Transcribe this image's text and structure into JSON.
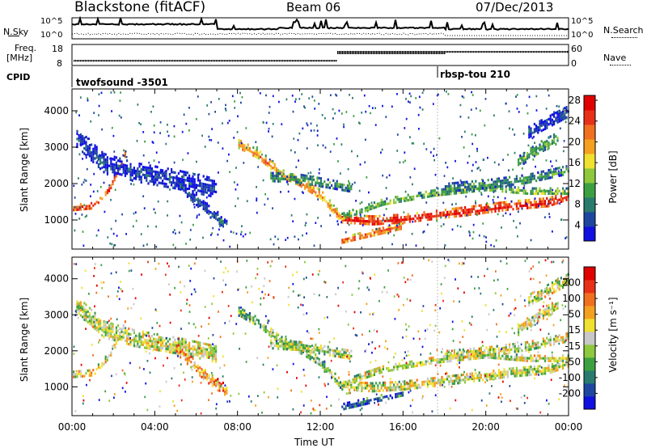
{
  "header": {
    "station": "Blackstone (fitACF)",
    "beam": "Beam 06",
    "date": "07/Dec/2013"
  },
  "noise_panel": {
    "left_label": "N.Sky",
    "right_label": "N.Search",
    "left_ticks": [
      "10^5",
      "10^0"
    ],
    "right_ticks": [
      "10^5",
      "10^0"
    ]
  },
  "freq_panel": {
    "left_label_top": "Freq.",
    "left_label_bottom": "[MHz]",
    "left_ticks": [
      "18",
      "8"
    ],
    "right_label": "Nave",
    "right_ticks": [
      "60",
      "0"
    ]
  },
  "cpid": {
    "label": "CPID",
    "modes": [
      {
        "name": "twofsound -3501",
        "start_hour": 0
      },
      {
        "name": "rbsp-tou 210",
        "start_hour": 18
      }
    ]
  },
  "chart_data": [
    {
      "type": "heatmap",
      "name": "power",
      "ylabel": "Slant Range [km]",
      "yticks": [
        1000,
        2000,
        3000,
        4000
      ],
      "ylim": [
        200,
        4600
      ],
      "xlim": [
        0,
        24
      ],
      "colorbar": {
        "label": "Power [dB]",
        "ticks": [
          "4",
          "8",
          "12",
          "16",
          "20",
          "24",
          "28"
        ],
        "colors": [
          "#1010e0",
          "#1e46a0",
          "#2a7a6e",
          "#3ca040",
          "#8ec83c",
          "#f0e030",
          "#f5a020",
          "#f07020",
          "#e83018",
          "#e00000"
        ]
      },
      "bands": [
        {
          "x": [
            0.0,
            1.0,
            1.8,
            2.6
          ],
          "y": [
            1350,
            1400,
            1900,
            2900
          ],
          "width": 200,
          "level": 0.85
        },
        {
          "x": [
            0.2,
            1.5,
            3.0,
            5.0,
            7.0
          ],
          "y": [
            3300,
            2600,
            2350,
            2150,
            1900
          ],
          "width": 500,
          "level": 0.15
        },
        {
          "x": [
            5.0,
            6.5,
            7.5
          ],
          "y": [
            2100,
            1300,
            900
          ],
          "width": 300,
          "level": 0.2
        },
        {
          "x": [
            8.0,
            9.0,
            10.0,
            11.0,
            12.0,
            13.0
          ],
          "y": [
            3100,
            2800,
            2300,
            2050,
            1700,
            1050
          ],
          "width": 280,
          "level": 0.7
        },
        {
          "x": [
            9.5,
            11.0,
            12.5,
            13.5
          ],
          "y": [
            2200,
            2150,
            2000,
            1900
          ],
          "width": 250,
          "level": 0.35
        },
        {
          "x": [
            13.0,
            14.5,
            16.0,
            17.5,
            19.0,
            21.0,
            23.0,
            24.0
          ],
          "y": [
            1050,
            1000,
            1050,
            1150,
            1250,
            1400,
            1500,
            1700
          ],
          "width": 260,
          "level": 0.92
        },
        {
          "x": [
            13.0,
            15.0,
            17.5,
            20.0,
            22.0,
            24.0
          ],
          "y": [
            1100,
            1500,
            1750,
            1900,
            1800,
            1800
          ],
          "width": 200,
          "level": 0.45
        },
        {
          "x": [
            13.0,
            14.5,
            16.0
          ],
          "y": [
            450,
            650,
            850
          ],
          "width": 200,
          "level": 0.8
        },
        {
          "x": [
            18.0,
            20.0,
            22.0,
            24.0
          ],
          "y": [
            1900,
            2000,
            2150,
            2400
          ],
          "width": 250,
          "level": 0.35
        },
        {
          "x": [
            21.5,
            22.5,
            23.5
          ],
          "y": [
            2600,
            3000,
            3300
          ],
          "width": 300,
          "level": 0.4
        },
        {
          "x": [
            22.0,
            23.0,
            24.0
          ],
          "y": [
            3400,
            3700,
            4000
          ],
          "width": 350,
          "level": 0.15
        },
        {
          "x": [
            0.0,
            6.0,
            12.0,
            18.0,
            24.0
          ],
          "y": [
            230,
            230,
            230,
            230,
            230
          ],
          "width": 70,
          "level": 0.3
        }
      ]
    },
    {
      "type": "heatmap",
      "name": "velocity",
      "ylabel": "Slant Range [km]",
      "xlabel": "Time UT",
      "xticks": [
        "00:00",
        "04:00",
        "08:00",
        "12:00",
        "16:00",
        "20:00",
        "00:00"
      ],
      "yticks": [
        1000,
        2000,
        3000,
        4000
      ],
      "ylim": [
        200,
        4600
      ],
      "xlim": [
        0,
        24
      ],
      "colorbar": {
        "label": "Velocity [m s⁻¹]",
        "ticks": [
          "200",
          "100",
          "50",
          "15",
          "-15",
          "-50",
          "-100",
          "-200"
        ],
        "colors": [
          "#1010e0",
          "#1e46a0",
          "#2a7a6e",
          "#3ca040",
          "#8ec83c",
          "#c8c8c8",
          "#f0e030",
          "#f5a020",
          "#f07020",
          "#e83018",
          "#e00000"
        ]
      },
      "bands": [
        {
          "x": [
            0.0,
            1.0,
            1.8,
            2.6
          ],
          "y": [
            1350,
            1400,
            1900,
            2900
          ],
          "width": 200,
          "level": 0.55
        },
        {
          "x": [
            0.2,
            1.5,
            3.0,
            5.0,
            7.0
          ],
          "y": [
            3300,
            2600,
            2350,
            2150,
            1900
          ],
          "width": 500,
          "level": 0.5
        },
        {
          "x": [
            5.0,
            6.5,
            7.5
          ],
          "y": [
            2100,
            1300,
            900
          ],
          "width": 300,
          "level": 0.65
        },
        {
          "x": [
            8.0,
            9.0,
            10.0,
            11.0,
            12.0,
            13.0
          ],
          "y": [
            3100,
            2800,
            2300,
            2050,
            1700,
            1050
          ],
          "width": 280,
          "level": 0.38
        },
        {
          "x": [
            9.5,
            11.0,
            12.5,
            13.5
          ],
          "y": [
            2200,
            2150,
            2000,
            1900
          ],
          "width": 250,
          "level": 0.45
        },
        {
          "x": [
            13.0,
            14.5,
            16.0,
            17.5,
            19.0,
            21.0,
            23.0,
            24.0
          ],
          "y": [
            1050,
            1000,
            1050,
            1150,
            1250,
            1400,
            1500,
            1700
          ],
          "width": 260,
          "level": 0.5
        },
        {
          "x": [
            13.0,
            15.0,
            17.5,
            20.0,
            22.0,
            24.0
          ],
          "y": [
            1100,
            1500,
            1750,
            1900,
            1800,
            1800
          ],
          "width": 200,
          "level": 0.5
        },
        {
          "x": [
            13.0,
            14.5,
            16.0
          ],
          "y": [
            450,
            650,
            850
          ],
          "width": 200,
          "level": 0.15
        },
        {
          "x": [
            18.0,
            20.0,
            22.0,
            24.0
          ],
          "y": [
            1900,
            2000,
            2150,
            2400
          ],
          "width": 250,
          "level": 0.5
        },
        {
          "x": [
            21.5,
            22.5,
            23.5
          ],
          "y": [
            2600,
            3000,
            3300
          ],
          "width": 300,
          "level": 0.5
        },
        {
          "x": [
            22.0,
            23.0,
            24.0
          ],
          "y": [
            3400,
            3700,
            4000
          ],
          "width": 350,
          "level": 0.5
        },
        {
          "x": [
            0.0,
            6.0,
            12.0,
            18.0,
            24.0
          ],
          "y": [
            230,
            230,
            230,
            230,
            230
          ],
          "width": 70,
          "level": 0.6
        }
      ]
    }
  ]
}
